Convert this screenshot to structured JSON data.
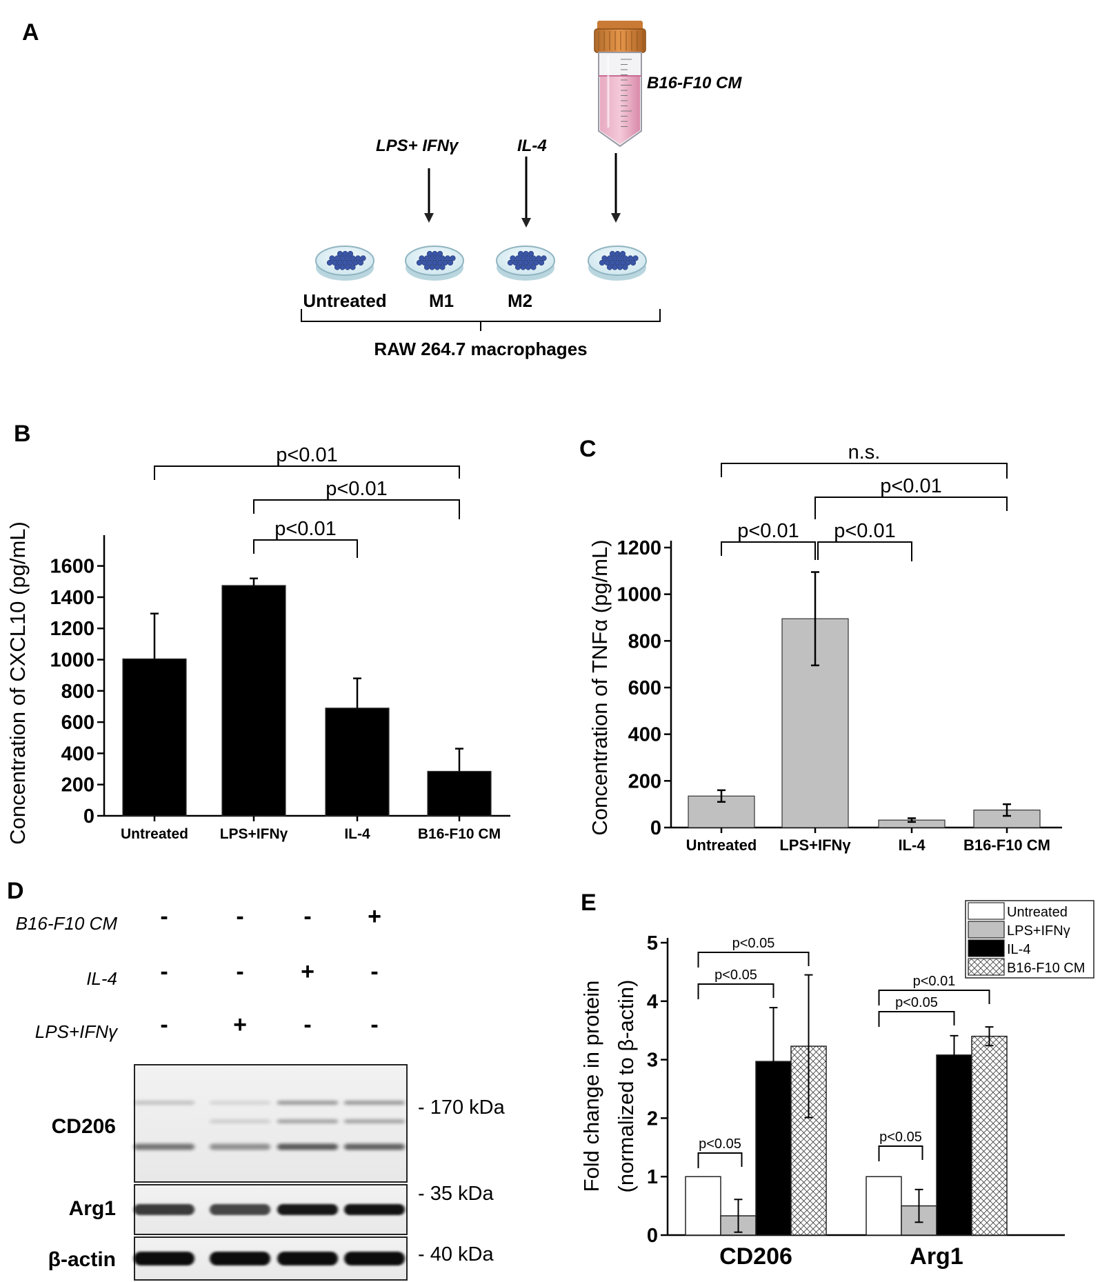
{
  "panel_a": {
    "label": "A",
    "treatments": [
      "LPS+ IFNγ",
      "IL-4",
      "B16-F10 CM"
    ],
    "dish_labels": [
      "Untreated",
      "M1",
      "M2"
    ],
    "cells": "RAW 264.7 macrophages"
  },
  "panel_b": {
    "label": "B",
    "chart_data": {
      "type": "bar",
      "categories": [
        "Untreated",
        "LPS+IFNγ",
        "IL-4",
        "B16-F10 CM"
      ],
      "values": [
        1005,
        1475,
        690,
        285
      ],
      "errors": [
        290,
        45,
        190,
        145
      ],
      "ylabel": "Concentration of CXCL10 (pg/mL)",
      "ylim": [
        0,
        1700
      ],
      "yticks": [
        0,
        200,
        400,
        600,
        800,
        1000,
        1200,
        1400,
        1600
      ],
      "bar_color": "#000000",
      "significance": [
        {
          "from": 0,
          "to": 3,
          "label": "p<0.01"
        },
        {
          "from": 1,
          "to": 3,
          "label": "p<0.01"
        },
        {
          "from": 1,
          "to": 2,
          "label": "p<0.01"
        }
      ]
    }
  },
  "panel_c": {
    "label": "C",
    "chart_data": {
      "type": "bar",
      "categories": [
        "Untreated",
        "LPS+IFNγ",
        "IL-4",
        "B16-F10 CM"
      ],
      "values": [
        135,
        895,
        32,
        75
      ],
      "errors": [
        25,
        200,
        8,
        25
      ],
      "ylabel": "Concentration of TNFα (pg/mL)",
      "ylim": [
        0,
        1200
      ],
      "yticks": [
        0,
        200,
        400,
        600,
        800,
        1000,
        1200
      ],
      "bar_color": "#c0c0c0",
      "significance": [
        {
          "from": 0,
          "to": 3,
          "label": "n.s."
        },
        {
          "from": 1,
          "to": 3,
          "label": "p<0.01"
        },
        {
          "from": 0,
          "to": 1,
          "label": "p<0.01"
        },
        {
          "from": 1,
          "to": 2,
          "label": "p<0.01"
        }
      ]
    }
  },
  "panel_d": {
    "label": "D",
    "conditions": [
      {
        "name": "B16-F10 CM",
        "marks": [
          "-",
          "-",
          "-",
          "+"
        ]
      },
      {
        "name": "IL-4",
        "marks": [
          "-",
          "-",
          "+",
          "-"
        ]
      },
      {
        "name": "LPS+IFNγ",
        "marks": [
          "-",
          "+",
          "-",
          "-"
        ]
      }
    ],
    "blots": [
      {
        "name": "CD206",
        "marker": "- 170 kDa"
      },
      {
        "name": "Arg1",
        "marker": "- 35 kDa"
      },
      {
        "name": "β-actin",
        "marker": "- 40 kDa"
      }
    ]
  },
  "panel_e": {
    "label": "E",
    "chart_data": {
      "type": "bar",
      "categories": [
        "CD206",
        "Arg1"
      ],
      "series": [
        {
          "name": "Untreated",
          "values": [
            1.0,
            1.0
          ],
          "errors": [
            0,
            0
          ],
          "color": "#ffffff"
        },
        {
          "name": "LPS+IFNγ",
          "values": [
            0.33,
            0.5
          ],
          "errors": [
            0.28,
            0.28
          ],
          "color": "#c0c0c0"
        },
        {
          "name": "IL-4",
          "values": [
            2.97,
            3.08
          ],
          "errors": [
            0.92,
            0.33
          ],
          "color": "#000000"
        },
        {
          "name": "B16-F10 CM",
          "values": [
            3.23,
            3.4
          ],
          "errors": [
            1.22,
            0.16
          ],
          "color": "crosshatch"
        }
      ],
      "ylabel_line1": "Fold change in protein",
      "ylabel_line2": "(normalized to β-actin)",
      "ylim": [
        0,
        5
      ],
      "yticks": [
        0,
        1,
        2,
        3,
        4,
        5
      ],
      "legend_position": "top-right",
      "significance": [
        {
          "group": 0,
          "from": 0,
          "to": 3,
          "label": "p<0.05"
        },
        {
          "group": 0,
          "from": 0,
          "to": 2,
          "label": "p<0.05"
        },
        {
          "group": 0,
          "from": 0,
          "to": 1,
          "label": "p<0.05"
        },
        {
          "group": 1,
          "from": 0,
          "to": 3,
          "label": "p<0.01"
        },
        {
          "group": 1,
          "from": 0,
          "to": 2,
          "label": "p<0.05"
        },
        {
          "group": 1,
          "from": 0,
          "to": 1,
          "label": "p<0.05"
        }
      ]
    }
  }
}
